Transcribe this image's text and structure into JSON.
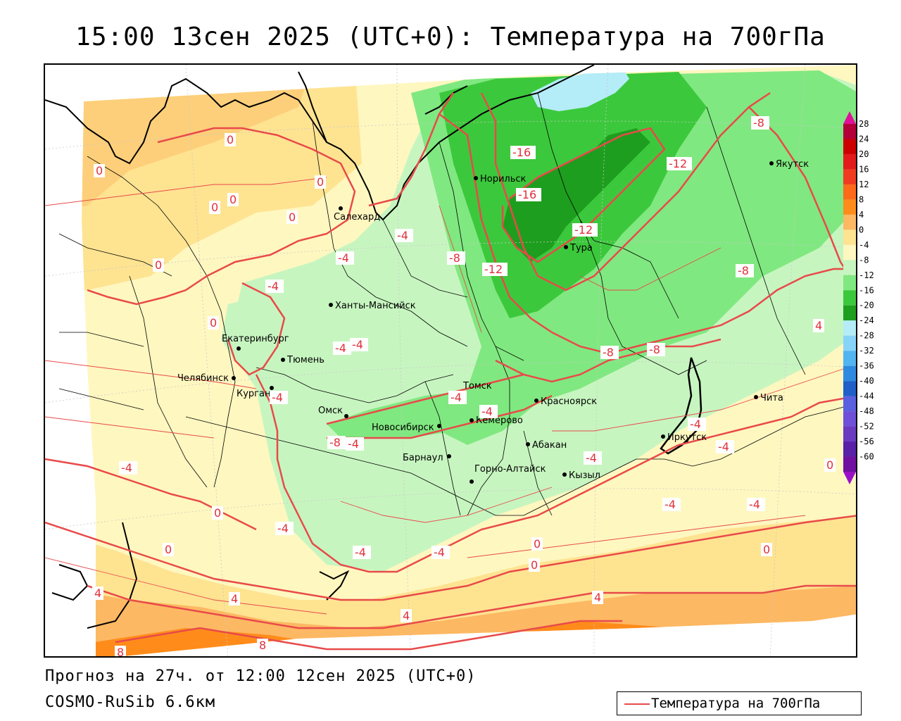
{
  "title": "15:00 13сен 2025 (UTC+0): Температура на 700гПа",
  "forecast_line": "Прогноз на 27ч. от 12:00 12сен 2025 (UTC+0)",
  "model_line": "COSMO-RuSib 6.6км",
  "legend": {
    "label": "Температура на 700гПа",
    "line_color": "#e84a4a"
  },
  "colorbar": {
    "levels": [
      {
        "label": "28",
        "color": "#b3003a"
      },
      {
        "label": "24",
        "color": "#cc0000"
      },
      {
        "label": "20",
        "color": "#e31a1c"
      },
      {
        "label": "16",
        "color": "#f03b20"
      },
      {
        "label": "12",
        "color": "#fd6a1a"
      },
      {
        "label": "8",
        "color": "#ff8c1a"
      },
      {
        "label": "4",
        "color": "#fdb863"
      },
      {
        "label": "0",
        "color": "#fee391"
      },
      {
        "label": "-4",
        "color": "#fff7c0"
      },
      {
        "label": "-8",
        "color": "#c7f5c0"
      },
      {
        "label": "-12",
        "color": "#80e880"
      },
      {
        "label": "-16",
        "color": "#3cc83c"
      },
      {
        "label": "-20",
        "color": "#1e9e1e"
      },
      {
        "label": "-24",
        "color": "#b4ecf8"
      },
      {
        "label": "-28",
        "color": "#88d4f8"
      },
      {
        "label": "-32",
        "color": "#52b4f0"
      },
      {
        "label": "-36",
        "color": "#2e8ae0"
      },
      {
        "label": "-40",
        "color": "#2060c8"
      },
      {
        "label": "-44",
        "color": "#5a60e0"
      },
      {
        "label": "-48",
        "color": "#7050d8"
      },
      {
        "label": "-52",
        "color": "#6a3ac0"
      },
      {
        "label": "-56",
        "color": "#5a20a8"
      },
      {
        "label": "-60",
        "color": "#7010a0"
      }
    ],
    "top_arrow_color": "#e0109a",
    "bottom_arrow_color": "#9a10c8"
  },
  "cities": [
    {
      "name": "Норильск"
    },
    {
      "name": "Якутск"
    },
    {
      "name": "Салехард"
    },
    {
      "name": "Тура"
    },
    {
      "name": "Ханты-Мансийск"
    },
    {
      "name": "Екатеринбург"
    },
    {
      "name": "Тюмень"
    },
    {
      "name": "Челябинск"
    },
    {
      "name": "Курган"
    },
    {
      "name": "Омск"
    },
    {
      "name": "Новосибирск"
    },
    {
      "name": "Томск"
    },
    {
      "name": "Кемерово"
    },
    {
      "name": "Красноярск"
    },
    {
      "name": "Абакан"
    },
    {
      "name": "Барнаул"
    },
    {
      "name": "Горно-Алтайск"
    },
    {
      "name": "Кызыл"
    },
    {
      "name": "Иркутск"
    },
    {
      "name": "Чита"
    }
  ],
  "isotherm_labels": [
    "0",
    "0",
    "0",
    "0",
    "0",
    "0",
    "0",
    "0",
    "-4",
    "-4",
    "-4",
    "-4",
    "-4",
    "-8",
    "-12",
    "-16",
    "-16",
    "-12",
    "-12",
    "-8",
    "-8",
    "-8",
    "-8",
    "-8",
    "-4",
    "-4",
    "-4",
    "-4",
    "-4",
    "-4",
    "-4",
    "-4",
    "-4",
    "-4",
    "-4",
    "-4",
    "-4",
    "0",
    "0",
    "0",
    "0",
    "0",
    "0",
    "4",
    "4",
    "4",
    "4",
    "4",
    "8",
    "8"
  ]
}
